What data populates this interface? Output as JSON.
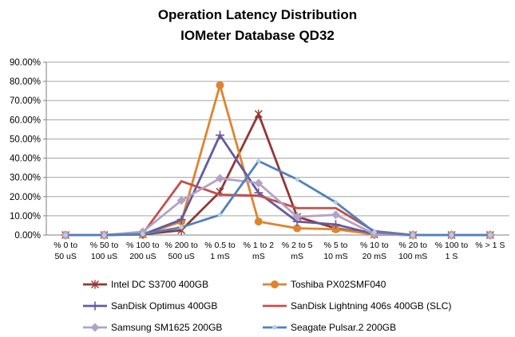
{
  "title": {
    "line1": "Operation Latency Distribution",
    "line2": "IOMeter Database QD32"
  },
  "chart_data": {
    "type": "line",
    "title": "Operation Latency Distribution IOMeter Database QD32",
    "categories": [
      "% 0 to 50 uS",
      "% 50 to 100 uS",
      "% 100 to 200 uS",
      "% 200 to 500 uS",
      "% 0.5 to 1 mS",
      "% 1 to 2 mS",
      "% 2 to 5 mS",
      "% 5 to 10 mS",
      "% 10 to 20 mS",
      "% 20 to 100 mS",
      "% 100 to 1 S",
      "% > 1 S"
    ],
    "category_tick_lines": [
      [
        "% 0 to",
        "50 uS"
      ],
      [
        "% 50 to",
        "100 uS"
      ],
      [
        "% 100 to",
        "200 uS"
      ],
      [
        "% 200 to",
        "500 uS"
      ],
      [
        "% 0.5 to",
        "1 mS"
      ],
      [
        "% 1 to 2",
        "mS"
      ],
      [
        "% 2 to 5",
        "mS"
      ],
      [
        "% 5 to",
        "10 mS"
      ],
      [
        "% 10 to",
        "20 mS"
      ],
      [
        "% 20 to",
        "100 mS"
      ],
      [
        "% 100 to",
        "1 S"
      ],
      [
        "% > 1 S"
      ]
    ],
    "y_axis": {
      "min": 0,
      "max": 90,
      "step": 10,
      "unit": "percent",
      "gridlines": true,
      "ticks": [
        "0.00%",
        "10.00%",
        "20.00%",
        "30.00%",
        "40.00%",
        "50.00%",
        "60.00%",
        "70.00%",
        "80.00%",
        "90.00%"
      ]
    },
    "legend_position": "bottom",
    "axis_color": "#808080",
    "gridline_color": "#A6A6A6",
    "series": [
      {
        "name": "Intel DC S3700 400GB",
        "color": "#943634",
        "marker": "star",
        "marker_color": "#943634",
        "values": [
          0,
          0,
          0.3,
          2.5,
          22.5,
          63,
          9.5,
          3.5,
          0.3,
          0,
          0,
          0
        ]
      },
      {
        "name": "Toshiba PX02SMF040",
        "color": "#DE8430",
        "marker": "circle",
        "marker_color": "#DE8430",
        "values": [
          0,
          0,
          0.2,
          7,
          78,
          7,
          3.5,
          3,
          0.3,
          0,
          0,
          0
        ]
      },
      {
        "name": "SanDisk Optimus 400GB",
        "color": "#655A9E",
        "marker": "plus",
        "marker_color": "#655A9E",
        "values": [
          0,
          0,
          0.3,
          8,
          52,
          22,
          7,
          5.5,
          0.5,
          0,
          0,
          0
        ]
      },
      {
        "name": "SanDisk Lightning 406s 400GB (SLC)",
        "color": "#C0504D",
        "marker": "none",
        "marker_color": "#C0504D",
        "values": [
          0,
          0,
          0.7,
          28,
          21,
          20.5,
          14,
          14,
          2,
          0,
          0,
          0
        ]
      },
      {
        "name": "Samsung SM1625 200GB",
        "color": "#B2A2C7",
        "marker": "diamond",
        "marker_color": "#B2A2C7",
        "values": [
          0,
          0,
          1.7,
          18,
          29.5,
          27,
          9.5,
          10.5,
          0.5,
          0,
          0,
          0
        ]
      },
      {
        "name": "Seagate Pulsar.2 200GB",
        "color": "#4F81BD",
        "marker": "small-diamond",
        "marker_color": "#B8CCE4",
        "values": [
          0,
          0,
          0.5,
          4,
          10.5,
          38.5,
          29,
          17,
          1.5,
          0,
          0,
          0
        ]
      }
    ]
  }
}
